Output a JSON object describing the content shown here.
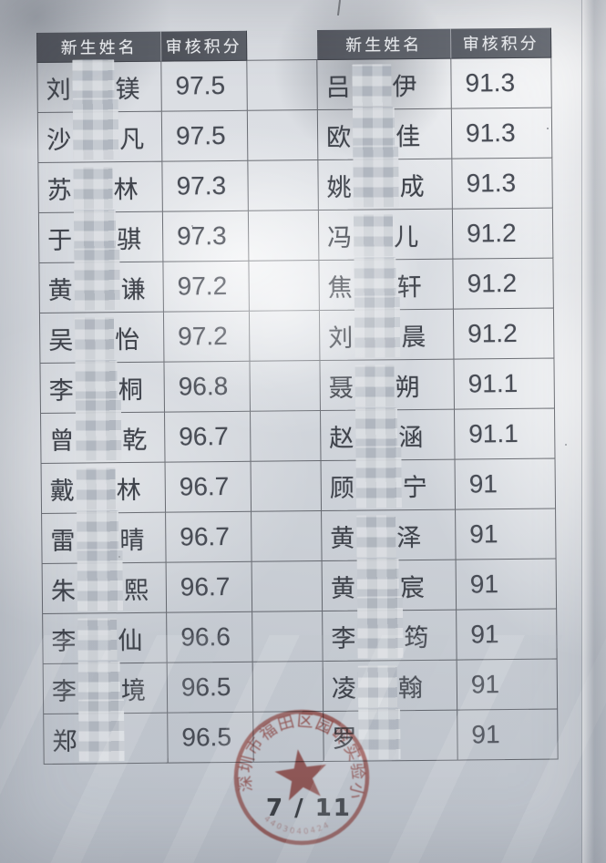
{
  "page": {
    "page_number": "7 / 11"
  },
  "table": {
    "headers": {
      "name": "新生姓名",
      "score": "审核积分"
    },
    "left_rows": [
      {
        "prefix": "刘",
        "suffix": "镁",
        "censored": true,
        "score": "97.5"
      },
      {
        "prefix": "沙",
        "suffix": "凡",
        "censored": true,
        "score": "97.5"
      },
      {
        "prefix": "苏",
        "suffix": "林",
        "censored": true,
        "score": "97.3"
      },
      {
        "prefix": "于",
        "suffix": "骐",
        "censored": true,
        "score": "97.3"
      },
      {
        "prefix": "黄",
        "suffix": "谦",
        "censored": true,
        "score": "97.2"
      },
      {
        "prefix": "吴",
        "suffix": "怡",
        "censored": true,
        "score": "97.2"
      },
      {
        "prefix": "李",
        "suffix": "桐",
        "censored": true,
        "score": "96.8"
      },
      {
        "prefix": "曾",
        "suffix": "乾",
        "censored": true,
        "score": "96.7"
      },
      {
        "prefix": "戴",
        "suffix": "林",
        "censored": true,
        "score": "96.7"
      },
      {
        "prefix": "雷",
        "suffix": "晴",
        "censored": true,
        "score": "96.7"
      },
      {
        "prefix": "朱",
        "suffix": "熙",
        "censored": true,
        "score": "96.7"
      },
      {
        "prefix": "李",
        "suffix": "仙",
        "censored": true,
        "score": "96.6"
      },
      {
        "prefix": "李",
        "suffix": "境",
        "censored": true,
        "score": "96.5"
      },
      {
        "prefix": "郑",
        "suffix": "",
        "censored": true,
        "score": "96.5"
      }
    ],
    "right_rows": [
      {
        "prefix": "吕",
        "suffix": "伊",
        "censored": true,
        "score": "91.3"
      },
      {
        "prefix": "欧",
        "suffix": "佳",
        "censored": true,
        "score": "91.3"
      },
      {
        "prefix": "姚",
        "suffix": "成",
        "censored": true,
        "score": "91.3"
      },
      {
        "prefix": "冯",
        "suffix": "儿",
        "censored": true,
        "score": "91.2"
      },
      {
        "prefix": "焦",
        "suffix": "轩",
        "censored": true,
        "score": "91.2"
      },
      {
        "prefix": "刘",
        "suffix": "晨",
        "censored": true,
        "score": "91.2"
      },
      {
        "prefix": "聂",
        "suffix": "朔",
        "censored": true,
        "score": "91.1"
      },
      {
        "prefix": "赵",
        "suffix": "涵",
        "censored": true,
        "score": "91.1"
      },
      {
        "prefix": "顾",
        "suffix": "宁",
        "censored": true,
        "score": "91"
      },
      {
        "prefix": "黄",
        "suffix": "泽",
        "censored": true,
        "score": "91"
      },
      {
        "prefix": "黄",
        "suffix": "宸",
        "censored": true,
        "score": "91"
      },
      {
        "prefix": "李",
        "suffix": "筠",
        "censored": true,
        "score": "91"
      },
      {
        "prefix": "凌",
        "suffix": "翰",
        "censored": true,
        "score": "91"
      },
      {
        "prefix": "罗",
        "suffix": "",
        "censored": true,
        "score": "91"
      }
    ]
  },
  "stamp": {
    "arc_text": "深圳市福田区园岭实验小学",
    "serial": "4403040424",
    "color": "#b0453c"
  },
  "colors": {
    "header_bg": "#54575e",
    "ink": "#3f434b",
    "stamp_red": "#b0453c",
    "paper": "#d3d7dd"
  }
}
